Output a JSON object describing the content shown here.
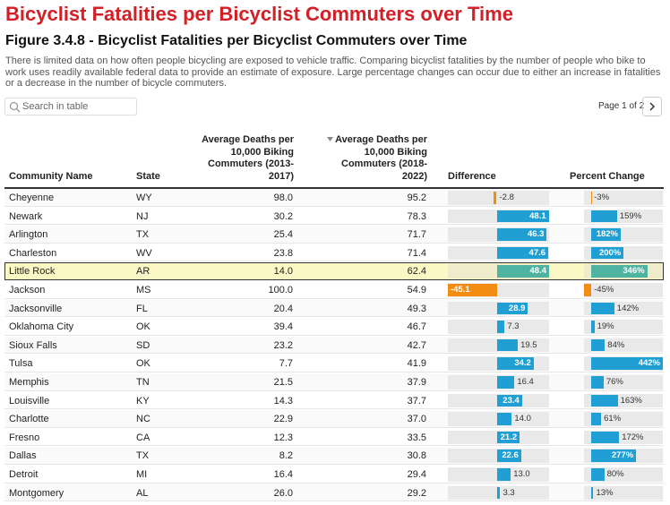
{
  "header": {
    "title": "Bicyclist Fatalities per Bicyclist Commuters over Time",
    "figure_title": "Figure 3.4.8 - Bicyclist Fatalities per Bicyclist Commuters over Time",
    "description": "There is limited data on how often people bicycling are exposed to vehicle traffic. Comparing bicyclist fatalities by the number of people who bike to work uses readily available federal data to provide an estimate of exposure. Large percentage changes can occur due to either an increase in fatalities or a decrease in the number of bicycle commuters."
  },
  "controls": {
    "search_placeholder": "Search in table",
    "pagination": "Page 1 of 2"
  },
  "table": {
    "columns": [
      "Community Name",
      "State",
      "Average Deaths per 10,000 Biking Commuters (2013-2017)",
      "Average Deaths per 10,000 Biking Commuters (2018-2022)",
      "Difference",
      "Percent Change"
    ],
    "rows": [
      [
        "Cheyenne",
        "WY",
        "98.0",
        "95.2",
        "-2.8",
        "-3%"
      ],
      [
        "Newark",
        "NJ",
        "30.2",
        "78.3",
        "48.1",
        "159%"
      ],
      [
        "Arlington",
        "TX",
        "25.4",
        "71.7",
        "46.3",
        "182%"
      ],
      [
        "Charleston",
        "WV",
        "23.8",
        "71.4",
        "47.6",
        "200%"
      ],
      [
        "Little Rock",
        "AR",
        "14.0",
        "62.4",
        "48.4",
        "346%"
      ],
      [
        "Jackson",
        "MS",
        "100.0",
        "54.9",
        "-45.1",
        "-45%"
      ],
      [
        "Jacksonville",
        "FL",
        "20.4",
        "49.3",
        "28.9",
        "142%"
      ],
      [
        "Oklahoma City",
        "OK",
        "39.4",
        "46.7",
        "7.3",
        "19%"
      ],
      [
        "Sioux Falls",
        "SD",
        "23.2",
        "42.7",
        "19.5",
        "84%"
      ],
      [
        "Tulsa",
        "OK",
        "7.7",
        "41.9",
        "34.2",
        "442%"
      ],
      [
        "Memphis",
        "TN",
        "21.5",
        "37.9",
        "16.4",
        "76%"
      ],
      [
        "Louisville",
        "KY",
        "14.3",
        "37.7",
        "23.4",
        "163%"
      ],
      [
        "Charlotte",
        "NC",
        "22.9",
        "37.0",
        "14.0",
        "61%"
      ],
      [
        "Fresno",
        "CA",
        "12.3",
        "33.5",
        "21.2",
        "172%"
      ],
      [
        "Dallas",
        "TX",
        "8.2",
        "30.8",
        "22.6",
        "277%"
      ],
      [
        "Detroit",
        "MI",
        "16.4",
        "29.4",
        "13.0",
        "80%"
      ],
      [
        "Montgomery",
        "AL",
        "26.0",
        "29.2",
        "3.3",
        "13%"
      ]
    ]
  }
}
